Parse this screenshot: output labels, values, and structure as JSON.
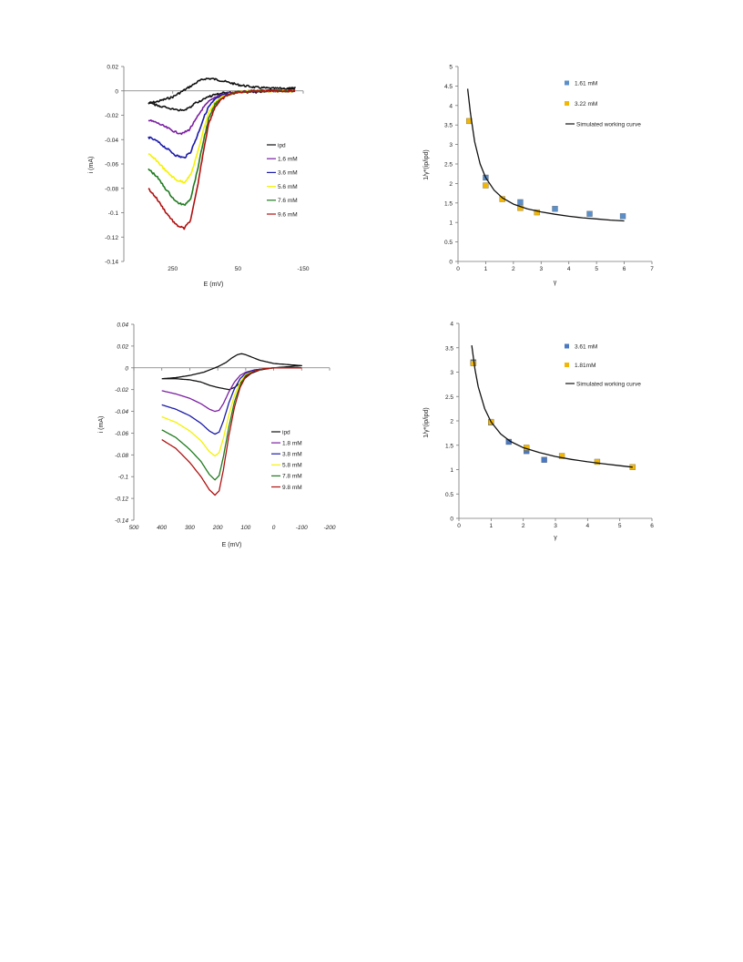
{
  "chart_data": [
    {
      "id": "cv1",
      "type": "line",
      "title": "",
      "xlabel": "E (mV)",
      "ylabel": "i (mA)",
      "xlim": [
        -150,
        400
      ],
      "x_reversed": true,
      "ylim": [
        -0.14,
        0.02
      ],
      "xticks": [
        "250",
        "50",
        "-150"
      ],
      "xtick_values": [
        250,
        50,
        -150
      ],
      "yticks": [
        "0.02",
        "0",
        "-0.02",
        "-0.04",
        "-0.06",
        "-0.08",
        "-0.1",
        "-0.12",
        "-0.14"
      ],
      "ytick_values": [
        0.02,
        0,
        -0.02,
        -0.04,
        -0.06,
        -0.08,
        -0.1,
        -0.12,
        -0.14
      ],
      "axis_labels_italic": false,
      "legend_position": "center-right",
      "noisy": true,
      "series": [
        {
          "name": "ipd",
          "color": "#111111",
          "closed": true,
          "x": [
            325,
            300,
            250,
            200,
            170,
            150,
            130,
            110,
            80,
            50,
            0,
            -50,
            -100,
            -125,
            -100,
            -50,
            0,
            50,
            100,
            130,
            150,
            180,
            200,
            220,
            250,
            280,
            325
          ],
          "y": [
            -0.01,
            -0.009,
            -0.005,
            0.003,
            0.008,
            0.01,
            0.01,
            0.009,
            0.007,
            0.005,
            0.003,
            0.002,
            0.002,
            0.002,
            0.001,
            0.0,
            -0.001,
            -0.001,
            -0.002,
            -0.004,
            -0.006,
            -0.01,
            -0.014,
            -0.016,
            -0.015,
            -0.013,
            -0.01
          ]
        },
        {
          "name": "1.6 mM",
          "color": "#7b1fa2",
          "x": [
            325,
            300,
            270,
            240,
            220,
            200,
            180,
            160,
            140,
            120,
            100,
            80,
            50,
            20,
            0,
            -50,
            -100,
            -125
          ],
          "y": [
            -0.024,
            -0.026,
            -0.03,
            -0.034,
            -0.035,
            -0.032,
            -0.024,
            -0.015,
            -0.009,
            -0.005,
            -0.003,
            -0.002,
            -0.001,
            -0.0005,
            0.0,
            0.0,
            0.0,
            0.0
          ]
        },
        {
          "name": "3.6 mM",
          "color": "#1a1aaa",
          "x": [
            325,
            300,
            270,
            240,
            215,
            195,
            175,
            155,
            140,
            120,
            100,
            80,
            50,
            20,
            0,
            -50,
            -100,
            -125
          ],
          "y": [
            -0.038,
            -0.041,
            -0.047,
            -0.053,
            -0.055,
            -0.05,
            -0.037,
            -0.022,
            -0.013,
            -0.007,
            -0.004,
            -0.002,
            -0.001,
            -0.0005,
            0.0,
            0.0,
            0.0,
            0.0
          ]
        },
        {
          "name": "5.6 mM",
          "color": "#f5f200",
          "x": [
            325,
            300,
            270,
            240,
            215,
            195,
            175,
            155,
            140,
            120,
            100,
            80,
            50,
            20,
            0,
            -50,
            -100,
            -125
          ],
          "y": [
            -0.052,
            -0.057,
            -0.066,
            -0.073,
            -0.075,
            -0.069,
            -0.052,
            -0.031,
            -0.018,
            -0.009,
            -0.005,
            -0.003,
            -0.001,
            -0.0005,
            0.0,
            0.0,
            0.0,
            0.0
          ]
        },
        {
          "name": "7.6 mM",
          "color": "#1e7a1e",
          "x": [
            325,
            300,
            270,
            240,
            215,
            195,
            175,
            155,
            140,
            120,
            100,
            80,
            50,
            20,
            0,
            -50,
            -100,
            -125
          ],
          "y": [
            -0.064,
            -0.07,
            -0.081,
            -0.091,
            -0.094,
            -0.088,
            -0.066,
            -0.04,
            -0.023,
            -0.011,
            -0.006,
            -0.003,
            -0.001,
            -0.0005,
            0.0,
            0.0,
            0.0,
            0.0
          ]
        },
        {
          "name": "9.6 mM",
          "color": "#b01010",
          "x": [
            325,
            300,
            270,
            240,
            215,
            195,
            175,
            155,
            140,
            120,
            100,
            80,
            50,
            20,
            0,
            -50,
            -100,
            -125
          ],
          "y": [
            -0.08,
            -0.088,
            -0.1,
            -0.11,
            -0.113,
            -0.106,
            -0.08,
            -0.048,
            -0.027,
            -0.013,
            -0.007,
            -0.003,
            -0.001,
            -0.0005,
            0.0,
            0.0,
            0.0,
            0.0
          ]
        }
      ]
    },
    {
      "id": "wc1",
      "type": "scatter",
      "title": "",
      "xlabel": "γ",
      "ylabel": "1/γ*(ip/ipd)",
      "xlim": [
        0,
        7
      ],
      "ylim": [
        0,
        5
      ],
      "xticks": [
        "0",
        "1",
        "2",
        "3",
        "4",
        "5",
        "6",
        "7"
      ],
      "xtick_values": [
        0,
        1,
        2,
        3,
        4,
        5,
        6,
        7
      ],
      "yticks": [
        "0",
        "0.5",
        "1",
        "1.5",
        "2",
        "2.5",
        "3",
        "3.5",
        "4",
        "4.5",
        "5"
      ],
      "ytick_values": [
        0,
        0.5,
        1,
        1.5,
        2,
        2.5,
        3,
        3.5,
        4,
        4.5,
        5
      ],
      "legend_position": "top-right",
      "series": [
        {
          "name": "1.61 mM",
          "color": "#5b8fc9",
          "x": [
            1.0,
            2.25,
            3.5,
            4.75,
            5.95
          ],
          "y": [
            2.15,
            1.52,
            1.35,
            1.22,
            1.16
          ]
        },
        {
          "name": "3.22 mM",
          "color": "#f2b705",
          "x": [
            0.4,
            1.0,
            1.6,
            2.25,
            2.85
          ],
          "y": [
            3.6,
            1.95,
            1.6,
            1.37,
            1.26
          ]
        },
        {
          "name": "Simulated working curve",
          "type": "line",
          "color": "#111111",
          "x": [
            0.35,
            0.45,
            0.6,
            0.8,
            1.0,
            1.3,
            1.6,
            2.0,
            2.5,
            3.0,
            3.5,
            4.0,
            4.5,
            5.0,
            5.5,
            6.0
          ],
          "y": [
            4.43,
            3.8,
            3.07,
            2.5,
            2.15,
            1.83,
            1.63,
            1.47,
            1.35,
            1.27,
            1.21,
            1.16,
            1.12,
            1.09,
            1.06,
            1.04
          ]
        }
      ]
    },
    {
      "id": "cv2",
      "type": "line",
      "title": "",
      "xlabel": "E (mV)",
      "ylabel": "i (mA)",
      "xlim": [
        -200,
        500
      ],
      "x_reversed": true,
      "ylim": [
        -0.14,
        0.04
      ],
      "xticks": [
        "500",
        "400",
        "300",
        "200",
        "100",
        "0",
        "-100",
        "-200"
      ],
      "xtick_values": [
        500,
        400,
        300,
        200,
        100,
        0,
        -100,
        -200
      ],
      "yticks": [
        "0.04",
        "0.02",
        "0",
        "-0.02",
        "-0.04",
        "-0.06",
        "-0.08",
        "-0.1",
        "-0.12",
        "-0.14"
      ],
      "ytick_values": [
        0.04,
        0.02,
        0,
        -0.02,
        -0.04,
        -0.06,
        -0.08,
        -0.1,
        -0.12,
        -0.14
      ],
      "axis_labels_italic": true,
      "legend_position": "center-right",
      "noisy": false,
      "series": [
        {
          "name": "ipd",
          "color": "#111111",
          "closed": true,
          "x": [
            400,
            350,
            300,
            250,
            200,
            170,
            150,
            130,
            115,
            100,
            80,
            50,
            0,
            -50,
            -100,
            -100,
            -50,
            0,
            50,
            80,
            100,
            120,
            140,
            160,
            180,
            200,
            230,
            260,
            300,
            350,
            400
          ],
          "y": [
            -0.01,
            -0.009,
            -0.007,
            -0.004,
            0.001,
            0.005,
            0.009,
            0.012,
            0.013,
            0.012,
            0.01,
            0.007,
            0.004,
            0.003,
            0.002,
            0.002,
            0.001,
            0.0,
            -0.002,
            -0.005,
            -0.009,
            -0.014,
            -0.018,
            -0.02,
            -0.019,
            -0.018,
            -0.016,
            -0.013,
            -0.011,
            -0.01,
            -0.01
          ]
        },
        {
          "name": "1.8 mM",
          "color": "#7b1fa2",
          "x": [
            400,
            350,
            300,
            260,
            230,
            210,
            195,
            180,
            160,
            140,
            120,
            100,
            70,
            40,
            0,
            -50,
            -100
          ],
          "y": [
            -0.021,
            -0.024,
            -0.028,
            -0.033,
            -0.038,
            -0.04,
            -0.039,
            -0.033,
            -0.022,
            -0.013,
            -0.007,
            -0.004,
            -0.002,
            -0.001,
            0.0,
            0.0,
            0.0
          ]
        },
        {
          "name": "3.8 mM",
          "color": "#1a1aaa",
          "x": [
            400,
            350,
            300,
            260,
            230,
            210,
            195,
            180,
            160,
            140,
            120,
            100,
            70,
            40,
            0,
            -50,
            -100
          ],
          "y": [
            -0.034,
            -0.038,
            -0.044,
            -0.051,
            -0.058,
            -0.061,
            -0.059,
            -0.049,
            -0.032,
            -0.019,
            -0.01,
            -0.005,
            -0.002,
            -0.001,
            0.0,
            0.0,
            0.0
          ]
        },
        {
          "name": "5.8 mM",
          "color": "#f5f200",
          "x": [
            400,
            350,
            300,
            260,
            230,
            210,
            195,
            180,
            160,
            140,
            120,
            100,
            70,
            40,
            0,
            -50,
            -100
          ],
          "y": [
            -0.045,
            -0.05,
            -0.058,
            -0.067,
            -0.077,
            -0.081,
            -0.078,
            -0.065,
            -0.043,
            -0.025,
            -0.013,
            -0.006,
            -0.003,
            -0.001,
            0.0,
            0.0,
            0.0
          ]
        },
        {
          "name": "7.8 mM",
          "color": "#1e7a1e",
          "x": [
            400,
            350,
            300,
            260,
            230,
            210,
            195,
            180,
            160,
            140,
            120,
            100,
            70,
            40,
            0,
            -50,
            -100
          ],
          "y": [
            -0.057,
            -0.064,
            -0.075,
            -0.086,
            -0.098,
            -0.103,
            -0.099,
            -0.082,
            -0.054,
            -0.031,
            -0.016,
            -0.007,
            -0.003,
            -0.001,
            0.0,
            0.0,
            0.0
          ]
        },
        {
          "name": "9.8 mM",
          "color": "#b01010",
          "x": [
            400,
            350,
            300,
            260,
            230,
            210,
            195,
            180,
            160,
            140,
            120,
            100,
            70,
            40,
            0,
            -50,
            -100
          ],
          "y": [
            -0.066,
            -0.074,
            -0.087,
            -0.1,
            -0.112,
            -0.117,
            -0.113,
            -0.094,
            -0.062,
            -0.036,
            -0.018,
            -0.008,
            -0.003,
            -0.001,
            0.0,
            0.0,
            0.0
          ]
        }
      ]
    },
    {
      "id": "wc2",
      "type": "scatter",
      "title": "",
      "xlabel": "γ",
      "ylabel": "1/γ*(ip/ipd)",
      "xlim": [
        0,
        6
      ],
      "ylim": [
        0,
        4
      ],
      "xticks": [
        "0",
        "1",
        "2",
        "3",
        "4",
        "5",
        "6"
      ],
      "xtick_values": [
        0,
        1,
        2,
        3,
        4,
        5,
        6
      ],
      "yticks": [
        "0",
        "0.5",
        "1",
        "1.5",
        "2",
        "2.5",
        "3",
        "3.5",
        "4"
      ],
      "ytick_values": [
        0,
        0.5,
        1,
        1.5,
        2,
        2.5,
        3,
        3.5,
        4
      ],
      "legend_position": "top-right",
      "series": [
        {
          "name": "3.61 mM",
          "color": "#4a78c2",
          "x": [
            0.45,
            1.0,
            1.55,
            2.1,
            2.65
          ],
          "y": [
            3.2,
            1.97,
            1.57,
            1.38,
            1.2
          ]
        },
        {
          "name": "1.81mM",
          "color": "#f2b705",
          "x": [
            0.45,
            1.0,
            2.1,
            3.2,
            4.3,
            5.4
          ],
          "y": [
            3.18,
            1.98,
            1.45,
            1.28,
            1.16,
            1.05
          ]
        },
        {
          "name": "Simulated working curve",
          "type": "line",
          "color": "#111111",
          "x": [
            0.4,
            0.5,
            0.6,
            0.8,
            1.0,
            1.3,
            1.6,
            2.0,
            2.5,
            3.0,
            3.5,
            4.0,
            4.5,
            5.0,
            5.4
          ],
          "y": [
            3.55,
            3.05,
            2.7,
            2.25,
            1.98,
            1.73,
            1.58,
            1.45,
            1.35,
            1.27,
            1.21,
            1.16,
            1.12,
            1.08,
            1.05
          ]
        }
      ]
    }
  ]
}
